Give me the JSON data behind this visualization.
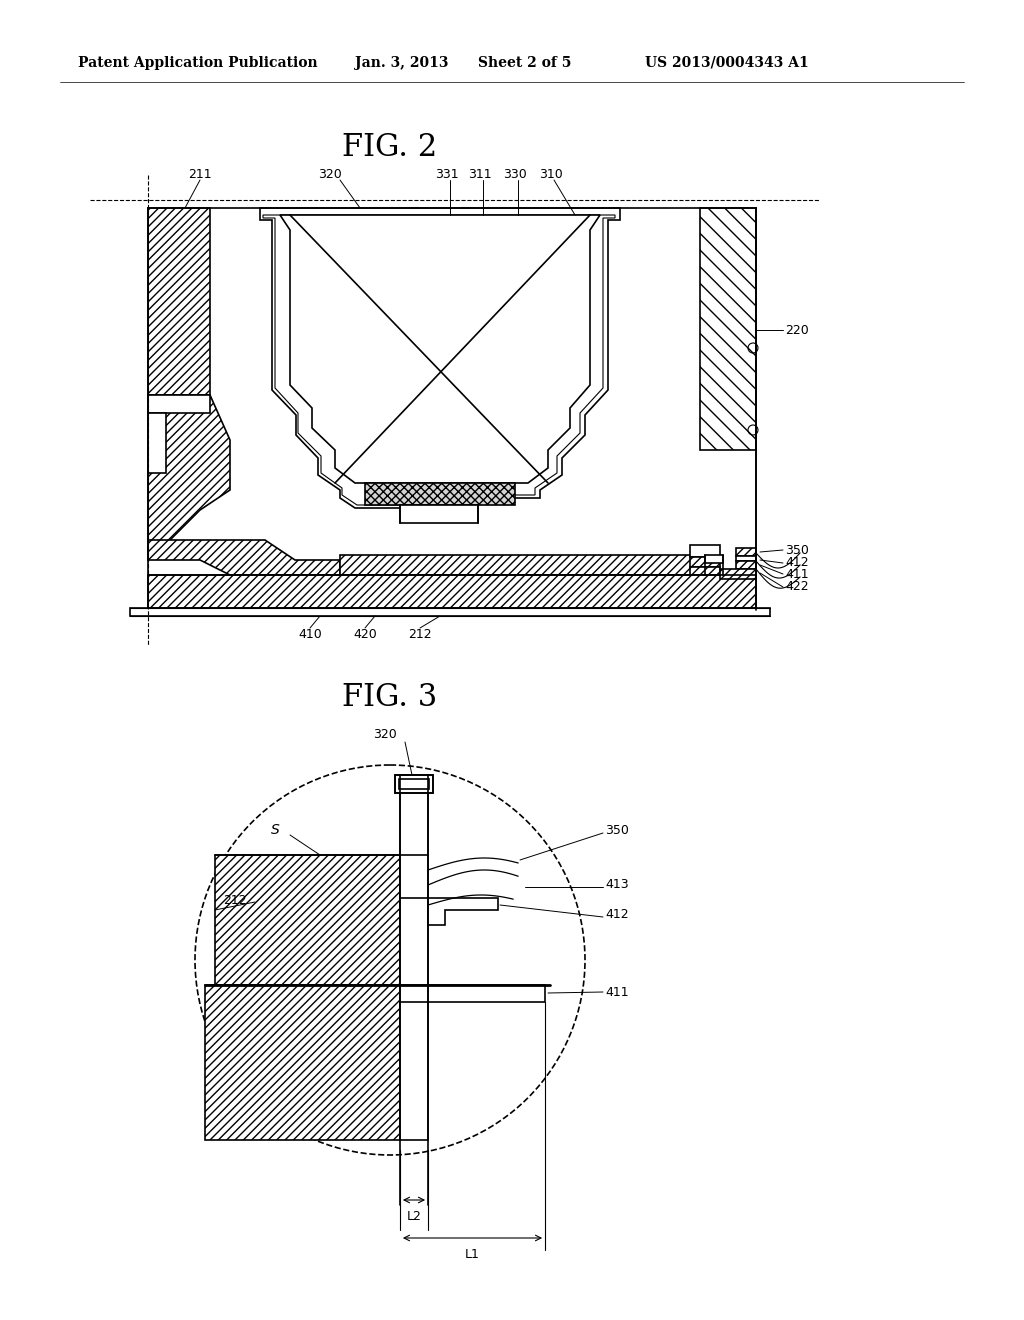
{
  "page_width": 10.24,
  "page_height": 13.2,
  "background_color": "#ffffff",
  "header_text": "Patent Application Publication",
  "header_date": "Jan. 3, 2013",
  "header_sheet": "Sheet 2 of 5",
  "header_patent": "US 2013/0004343 A1",
  "fig2_title": "FIG. 2",
  "fig3_title": "FIG. 3",
  "label_fontsize": 9,
  "title_fontsize": 22,
  "header_fontsize": 10
}
